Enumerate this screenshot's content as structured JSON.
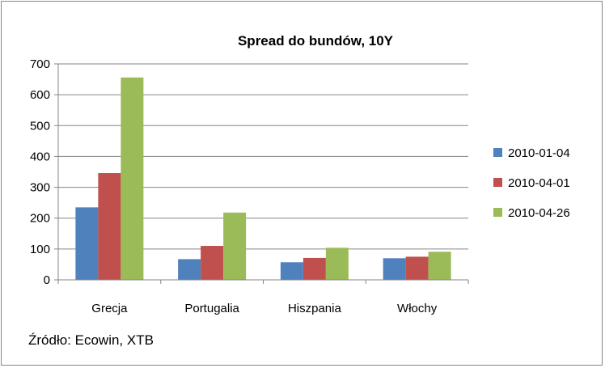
{
  "chart_data": {
    "type": "bar",
    "title": "Spread do bundów, 10Y",
    "xlabel": "",
    "ylabel": "",
    "categories": [
      "Grecja",
      "Portugalia",
      "Hiszpania",
      "Włochy"
    ],
    "ylim": [
      0,
      700
    ],
    "yticks": [
      0,
      100,
      200,
      300,
      400,
      500,
      600,
      700
    ],
    "grid": true,
    "legend_position": "right",
    "series": [
      {
        "name": "2010-01-04",
        "color": "#4F81BD",
        "values": [
          235,
          67,
          57,
          70
        ]
      },
      {
        "name": "2010-04-01",
        "color": "#C0504D",
        "values": [
          346,
          110,
          71,
          75
        ]
      },
      {
        "name": "2010-04-26",
        "color": "#9BBB59",
        "values": [
          656,
          218,
          104,
          91
        ]
      }
    ]
  },
  "source_note": "Źródło: Ecowin, XTB"
}
